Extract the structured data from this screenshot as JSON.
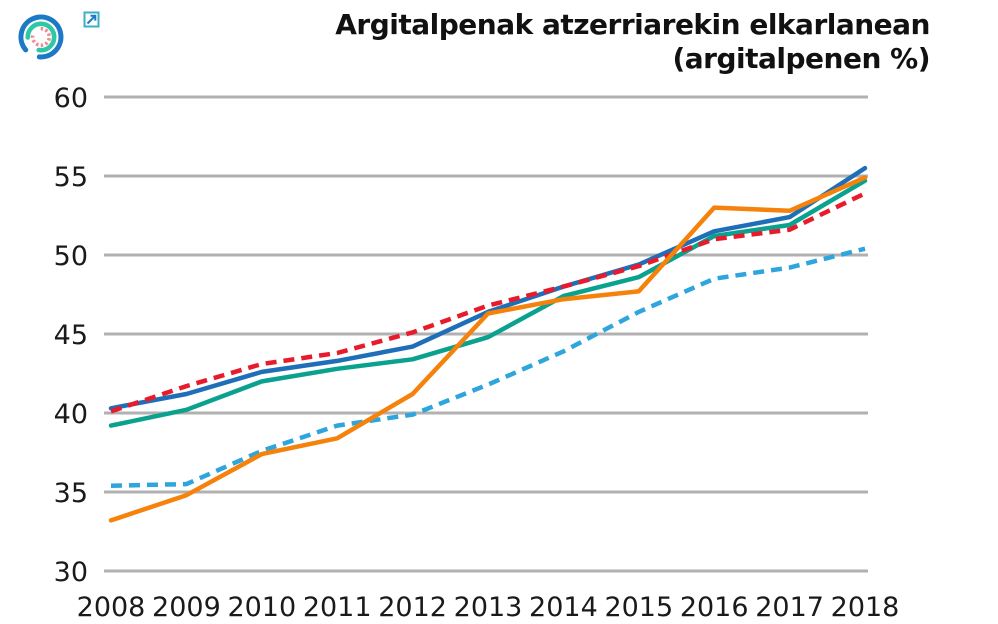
{
  "header": {
    "title_line1": "Argitalpenak atzerriarekin elkarlanean",
    "title_line2": "(argitalpenen %)",
    "logo_icon": "circular-arcs-logo",
    "external_link_icon": "external-link-arrow"
  },
  "chart_data": {
    "type": "line",
    "title": "Argitalpenak atzerriarekin elkarlanean (argitalpenen %)",
    "xlabel": "",
    "ylabel": "",
    "x": [
      2008,
      2009,
      2010,
      2011,
      2012,
      2013,
      2014,
      2015,
      2016,
      2017,
      2018
    ],
    "ylim": [
      30,
      60
    ],
    "yticks": [
      30,
      35,
      40,
      45,
      50,
      55,
      60
    ],
    "grid": "horizontal-only",
    "legend": "none",
    "series": [
      {
        "name": "dark-blue-solid",
        "line_style": "solid",
        "color": "#1e6fb8",
        "values": [
          40.3,
          41.2,
          42.6,
          43.3,
          44.2,
          46.4,
          48.0,
          49.4,
          51.5,
          52.4,
          55.5
        ]
      },
      {
        "name": "teal-solid",
        "line_style": "solid",
        "color": "#0ba18f",
        "values": [
          39.2,
          40.2,
          42.0,
          42.8,
          43.4,
          44.8,
          47.4,
          48.6,
          51.2,
          51.9,
          54.7
        ]
      },
      {
        "name": "red-dashed",
        "line_style": "dashed",
        "color": "#e81b2c",
        "values": [
          40.1,
          41.7,
          43.1,
          43.8,
          45.1,
          46.8,
          48.0,
          49.3,
          51.0,
          51.6,
          53.9
        ]
      },
      {
        "name": "light-blue-dashed",
        "line_style": "dashed",
        "color": "#2ea5dc",
        "values": [
          35.4,
          35.5,
          37.6,
          39.2,
          39.9,
          41.8,
          43.9,
          46.4,
          48.5,
          49.2,
          50.4
        ]
      },
      {
        "name": "orange-solid",
        "line_style": "solid",
        "color": "#f5820b",
        "values": [
          33.2,
          34.8,
          37.4,
          38.4,
          41.2,
          46.3,
          47.2,
          47.7,
          53.0,
          52.8,
          54.9
        ]
      }
    ],
    "colors": {
      "gridline": "#b1b1b1",
      "tick_text": "#1a1a1a",
      "title_text": "#111111"
    }
  }
}
